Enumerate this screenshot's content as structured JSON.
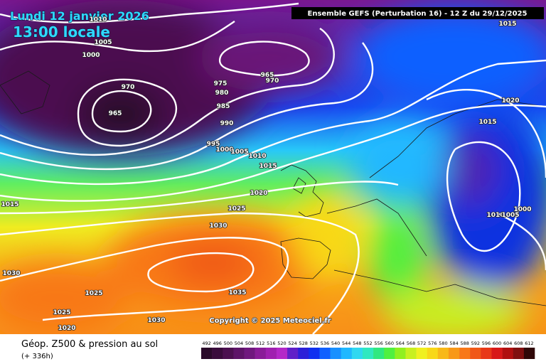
{
  "date_title": "Lundi 12 janvier 2026",
  "time_title": "13:00 locale",
  "model_header": "Ensemble GEFS  (Perturbation 16)  -  12 Z du 29/12/2025",
  "copyright": "Copyright © 2025 Meteociel.fr",
  "parameter": "Géop. Z500 & pression au sol",
  "lead_time": "(+ 336h)",
  "isobar_labels": [
    1010,
    1005,
    1000,
    970,
    965,
    965,
    970,
    975,
    980,
    985,
    990,
    995,
    1000,
    1005,
    1010,
    1015,
    1020,
    1025,
    1030,
    1035,
    1015,
    1030,
    1025,
    1025,
    1020,
    1030,
    1015,
    1020,
    1015,
    1010,
    1005,
    1000
  ],
  "colorbar": {
    "labels": [
      492,
      496,
      500,
      504,
      508,
      512,
      516,
      520,
      524,
      528,
      532,
      536,
      540,
      544,
      548,
      552,
      556,
      560,
      564,
      568,
      572,
      576,
      580,
      584,
      588,
      592,
      596,
      600,
      604,
      608,
      612
    ],
    "colors": [
      "#2a0a2a",
      "#3a0c3c",
      "#4c1050",
      "#5e1468",
      "#70187e",
      "#8a1c98",
      "#a020b0",
      "#b428c8",
      "#6020c8",
      "#2c20d8",
      "#1030f0",
      "#1060ff",
      "#1890ff",
      "#20b8ff",
      "#30d8f0",
      "#30e8c0",
      "#30e880",
      "#50f040",
      "#90f020",
      "#c8f020",
      "#f0f020",
      "#f8d818",
      "#f8b818",
      "#f89818",
      "#f87818",
      "#f05818",
      "#e83818",
      "#d81818",
      "#b01010",
      "#801010",
      "#300808"
    ]
  }
}
